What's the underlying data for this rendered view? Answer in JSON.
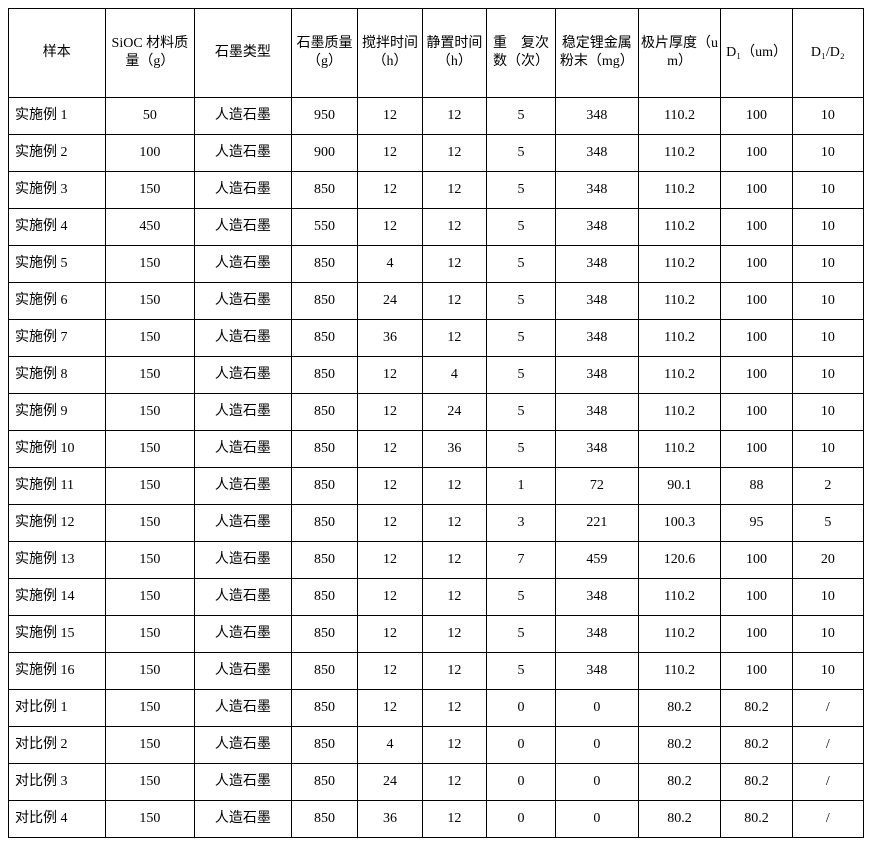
{
  "table": {
    "columns": [
      "样本",
      "SiOC 材料质量（g）",
      "石墨类型",
      "石墨质量（g）",
      "搅拌时间（h）",
      "静置时间（h）",
      "重　复次　数（次）",
      "稳定锂金属粉末（mg）",
      "极片厚度（um）",
      "D₁（um）",
      "D₁/D₂"
    ],
    "rows": [
      [
        "实施例 1",
        "50",
        "人造石墨",
        "950",
        "12",
        "12",
        "5",
        "348",
        "110.2",
        "100",
        "10"
      ],
      [
        "实施例 2",
        "100",
        "人造石墨",
        "900",
        "12",
        "12",
        "5",
        "348",
        "110.2",
        "100",
        "10"
      ],
      [
        "实施例 3",
        "150",
        "人造石墨",
        "850",
        "12",
        "12",
        "5",
        "348",
        "110.2",
        "100",
        "10"
      ],
      [
        "实施例 4",
        "450",
        "人造石墨",
        "550",
        "12",
        "12",
        "5",
        "348",
        "110.2",
        "100",
        "10"
      ],
      [
        "实施例 5",
        "150",
        "人造石墨",
        "850",
        "4",
        "12",
        "5",
        "348",
        "110.2",
        "100",
        "10"
      ],
      [
        "实施例 6",
        "150",
        "人造石墨",
        "850",
        "24",
        "12",
        "5",
        "348",
        "110.2",
        "100",
        "10"
      ],
      [
        "实施例 7",
        "150",
        "人造石墨",
        "850",
        "36",
        "12",
        "5",
        "348",
        "110.2",
        "100",
        "10"
      ],
      [
        "实施例 8",
        "150",
        "人造石墨",
        "850",
        "12",
        "4",
        "5",
        "348",
        "110.2",
        "100",
        "10"
      ],
      [
        "实施例 9",
        "150",
        "人造石墨",
        "850",
        "12",
        "24",
        "5",
        "348",
        "110.2",
        "100",
        "10"
      ],
      [
        "实施例 10",
        "150",
        "人造石墨",
        "850",
        "12",
        "36",
        "5",
        "348",
        "110.2",
        "100",
        "10"
      ],
      [
        "实施例 11",
        "150",
        "人造石墨",
        "850",
        "12",
        "12",
        "1",
        "72",
        "90.1",
        "88",
        "2"
      ],
      [
        "实施例 12",
        "150",
        "人造石墨",
        "850",
        "12",
        "12",
        "3",
        "221",
        "100.3",
        "95",
        "5"
      ],
      [
        "实施例 13",
        "150",
        "人造石墨",
        "850",
        "12",
        "12",
        "7",
        "459",
        "120.6",
        "100",
        "20"
      ],
      [
        "实施例 14",
        "150",
        "人造石墨",
        "850",
        "12",
        "12",
        "5",
        "348",
        "110.2",
        "100",
        "10"
      ],
      [
        "实施例 15",
        "150",
        "人造石墨",
        "850",
        "12",
        "12",
        "5",
        "348",
        "110.2",
        "100",
        "10"
      ],
      [
        "实施例 16",
        "150",
        "人造石墨",
        "850",
        "12",
        "12",
        "5",
        "348",
        "110.2",
        "100",
        "10"
      ],
      [
        "对比例 1",
        "150",
        "人造石墨",
        "850",
        "12",
        "12",
        "0",
        "0",
        "80.2",
        "80.2",
        "/"
      ],
      [
        "对比例 2",
        "150",
        "人造石墨",
        "850",
        "4",
        "12",
        "0",
        "0",
        "80.2",
        "80.2",
        "/"
      ],
      [
        "对比例 3",
        "150",
        "人造石墨",
        "850",
        "24",
        "12",
        "0",
        "0",
        "80.2",
        "80.2",
        "/"
      ],
      [
        "对比例 4",
        "150",
        "人造石墨",
        "850",
        "36",
        "12",
        "0",
        "0",
        "80.2",
        "80.2",
        "/"
      ]
    ]
  }
}
